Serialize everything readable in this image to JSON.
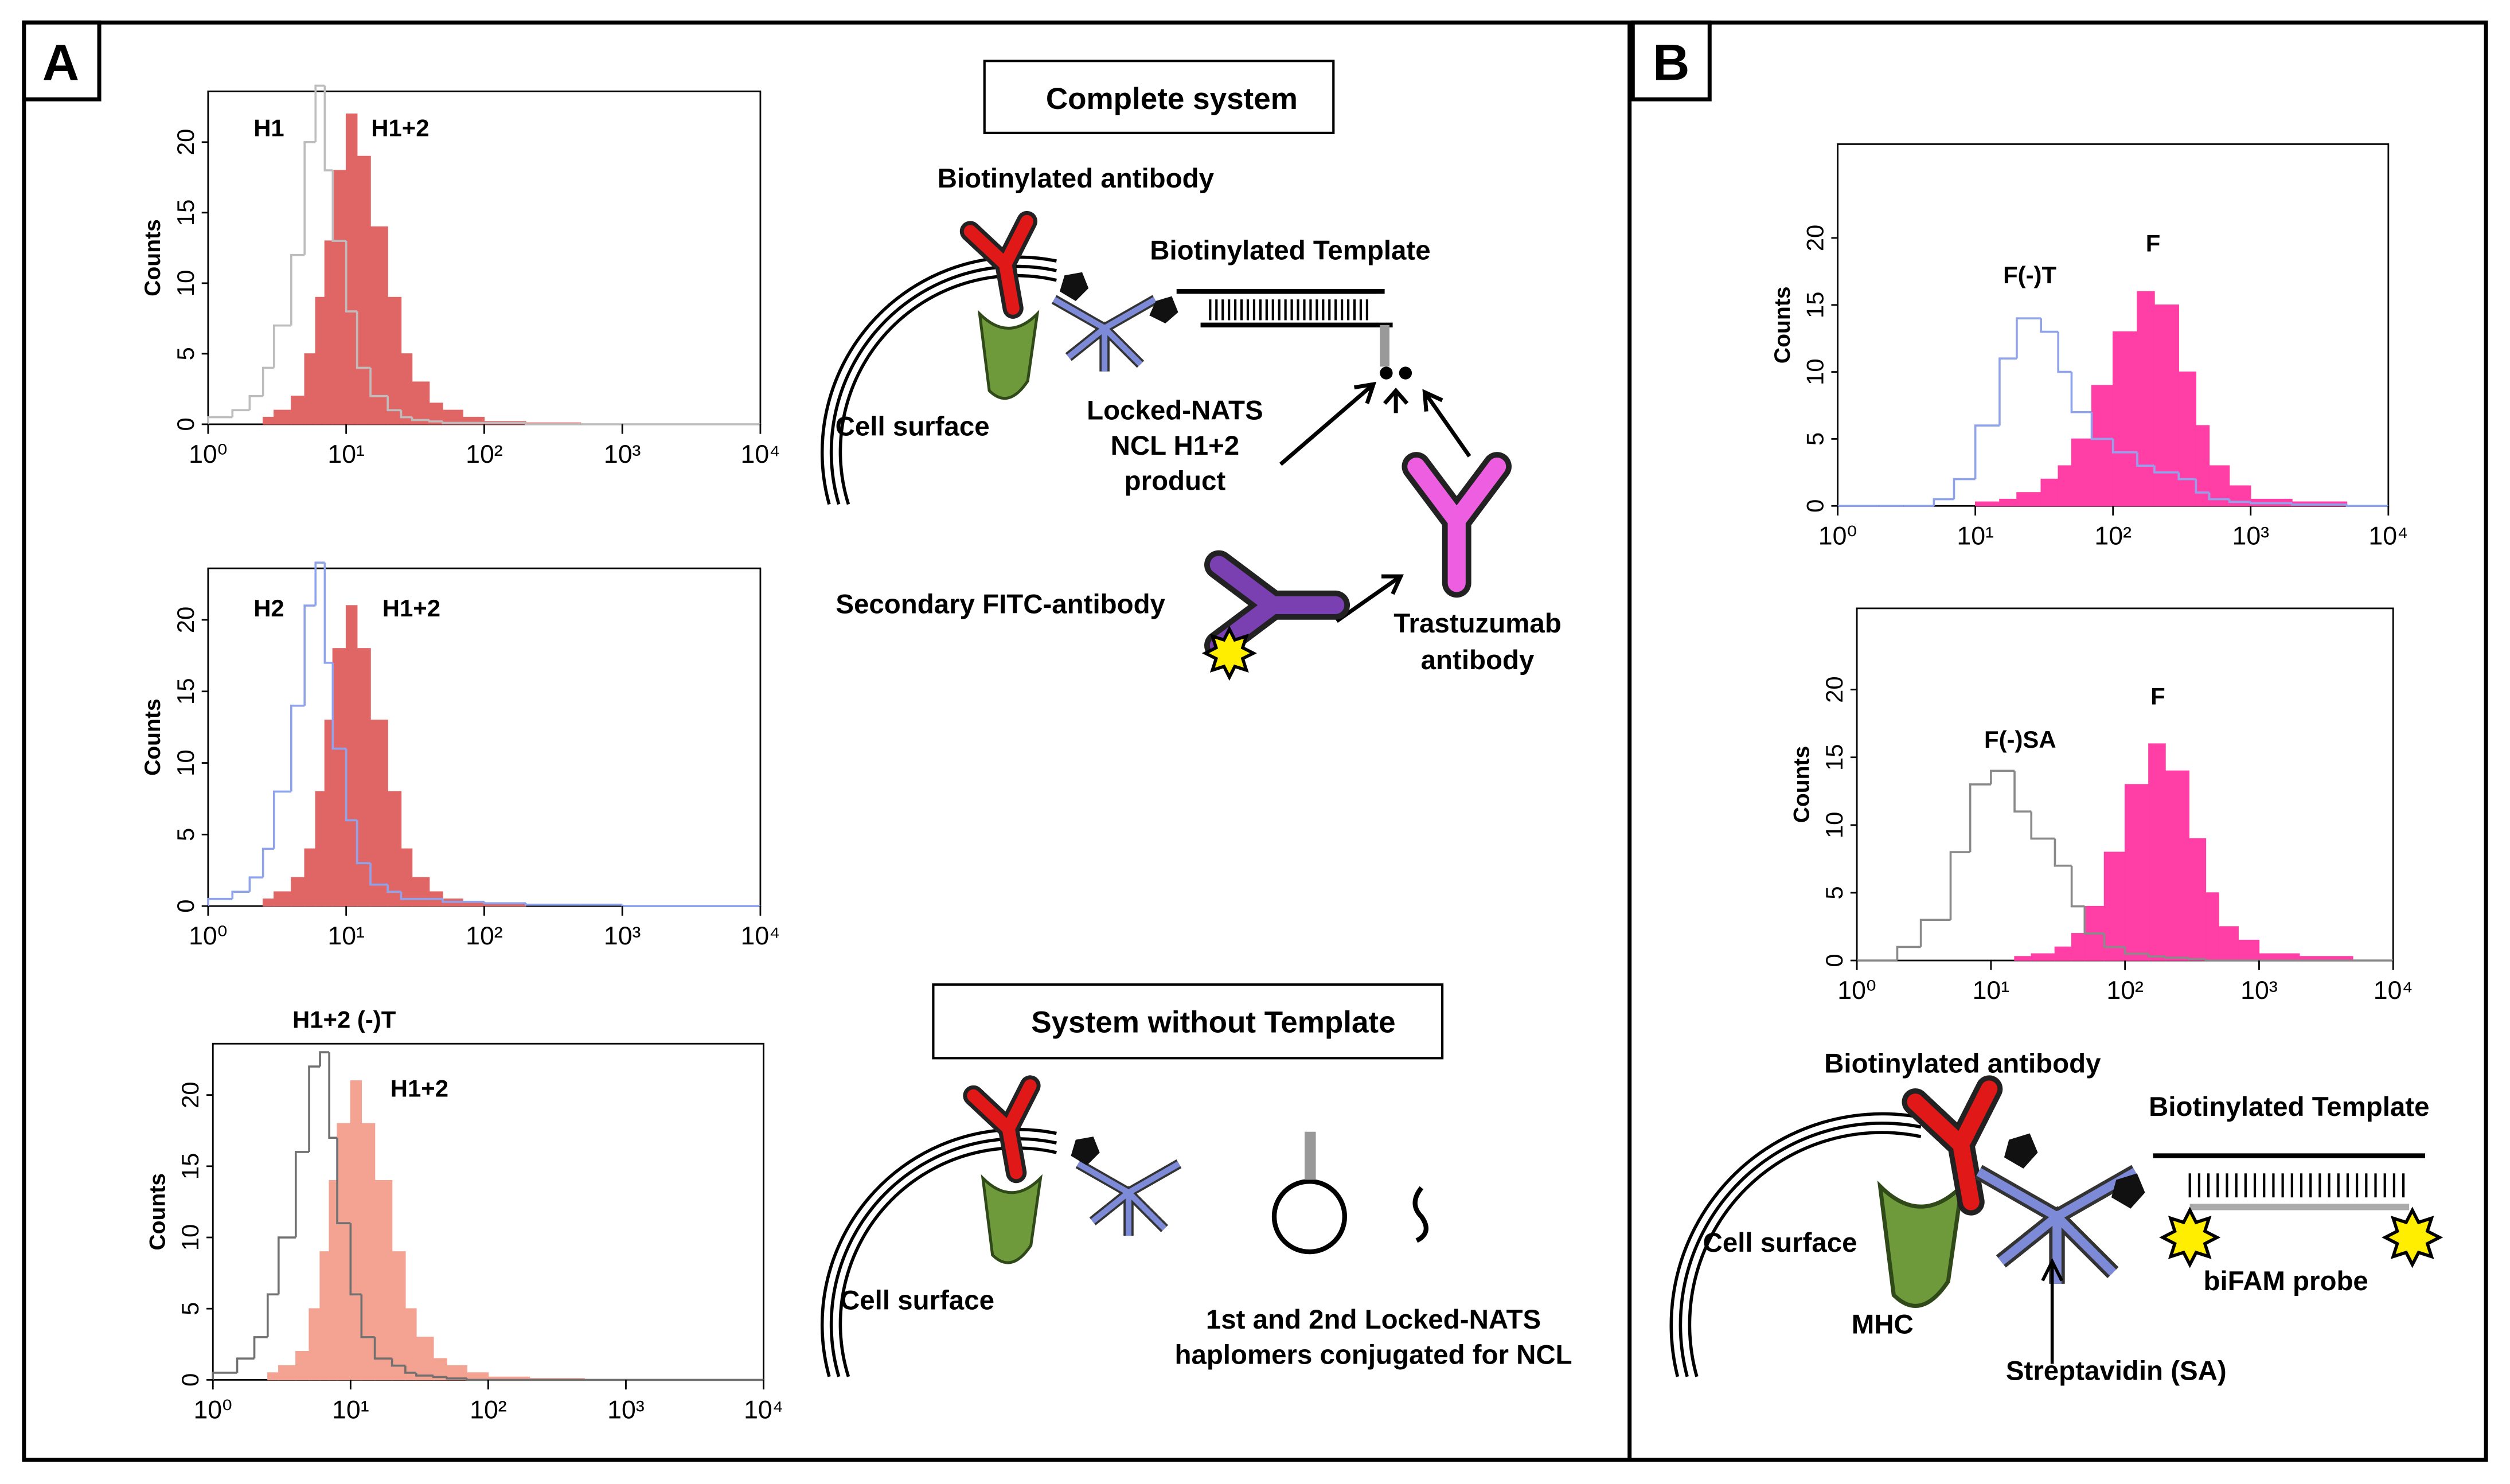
{
  "panels": {
    "a": "A",
    "b": "B"
  },
  "chart_data": [
    {
      "type": "histogram",
      "y_label": "Counts",
      "xlim": [
        1,
        10000
      ],
      "x_log": true,
      "ylim": [
        0,
        23.6
      ],
      "xticks": [
        {
          "value": 1,
          "label": "10⁰"
        },
        {
          "value": 10,
          "label": "10¹"
        },
        {
          "value": 100,
          "label": "10²"
        },
        {
          "value": 1000,
          "label": "10³"
        },
        {
          "value": 10000,
          "label": "10⁴"
        }
      ],
      "yticks": [
        0,
        5,
        10,
        15,
        20
      ],
      "bins": [
        1,
        1.5,
        2,
        2.5,
        3,
        4,
        5,
        6,
        7,
        8,
        10,
        12,
        15,
        20,
        25,
        30,
        40,
        50,
        70,
        100,
        200,
        500,
        1000,
        10000
      ],
      "series": [
        {
          "name": "H1",
          "color": "#bdbdbd",
          "filled": false,
          "values": [
            0.5,
            1,
            2,
            4,
            7,
            12,
            20,
            24,
            18,
            13,
            8,
            4,
            2,
            1,
            0.5,
            0.3,
            0.2,
            0.1,
            0.1,
            0.1,
            0,
            0,
            0
          ]
        },
        {
          "name": "H1+2",
          "color": "#e06666",
          "filled": true,
          "values": [
            0,
            0,
            0,
            0.5,
            1,
            2,
            5,
            9,
            13,
            18,
            22,
            19,
            14,
            9,
            5,
            3,
            1.5,
            1,
            0.5,
            0.2,
            0.1,
            0,
            0
          ]
        }
      ]
    },
    {
      "type": "histogram",
      "y_label": "Counts",
      "xlim": [
        1,
        10000
      ],
      "x_log": true,
      "ylim": [
        0,
        23.6
      ],
      "xticks": [
        {
          "value": 1,
          "label": "10⁰"
        },
        {
          "value": 10,
          "label": "10¹"
        },
        {
          "value": 100,
          "label": "10²"
        },
        {
          "value": 1000,
          "label": "10³"
        },
        {
          "value": 10000,
          "label": "10⁴"
        }
      ],
      "yticks": [
        0,
        5,
        10,
        15,
        20
      ],
      "bins": [
        1,
        1.5,
        2,
        2.5,
        3,
        4,
        5,
        6,
        7,
        8,
        10,
        12,
        15,
        20,
        25,
        30,
        40,
        50,
        70,
        100,
        200,
        500,
        1000,
        10000
      ],
      "series": [
        {
          "name": "H2",
          "color": "#8fa3ec",
          "filled": false,
          "values": [
            0.5,
            1,
            2,
            4,
            8,
            14,
            21,
            24,
            17,
            11,
            6,
            3,
            1.5,
            1,
            0.5,
            0.5,
            0.5,
            0.3,
            0.3,
            0.2,
            0.1,
            0.1,
            0
          ]
        },
        {
          "name": "H1+2",
          "color": "#e06666",
          "filled": true,
          "values": [
            0,
            0,
            0,
            0.5,
            1,
            2,
            4,
            8,
            13,
            18,
            21,
            18,
            13,
            8,
            4,
            2,
            1,
            0.5,
            0.3,
            0.1,
            0,
            0,
            0
          ]
        }
      ]
    },
    {
      "type": "histogram",
      "y_label": "Counts",
      "xlim": [
        1,
        10000
      ],
      "x_log": true,
      "ylim": [
        0,
        23.6
      ],
      "xticks": [
        {
          "value": 1,
          "label": "10⁰"
        },
        {
          "value": 10,
          "label": "10¹"
        },
        {
          "value": 100,
          "label": "10²"
        },
        {
          "value": 1000,
          "label": "10³"
        },
        {
          "value": 10000,
          "label": "10⁴"
        }
      ],
      "yticks": [
        0,
        5,
        10,
        15,
        20
      ],
      "bins": [
        1,
        1.5,
        2,
        2.5,
        3,
        4,
        5,
        6,
        7,
        8,
        10,
        12,
        15,
        20,
        25,
        30,
        40,
        50,
        70,
        100,
        200,
        500,
        1000,
        10000
      ],
      "series": [
        {
          "name": "H1+2 (-)T",
          "color": "#707070",
          "filled": false,
          "values": [
            0.5,
            1.5,
            3,
            6,
            10,
            16,
            22,
            23,
            17,
            11,
            6,
            3,
            1.5,
            1,
            0.5,
            0.3,
            0.2,
            0.1,
            0,
            0,
            0,
            0,
            0
          ]
        },
        {
          "name": "H1+2",
          "color": "#f4a392",
          "filled": true,
          "values": [
            0,
            0,
            0,
            0.5,
            1,
            2,
            5,
            9,
            14,
            18,
            21,
            18,
            14,
            9,
            5,
            3,
            1.5,
            1,
            0.5,
            0.2,
            0.1,
            0,
            0
          ]
        }
      ]
    },
    {
      "type": "histogram",
      "y_label": "Counts",
      "xlim": [
        1,
        10000
      ],
      "x_log": true,
      "ylim": [
        0,
        27
      ],
      "xticks": [
        {
          "value": 1,
          "label": "10⁰"
        },
        {
          "value": 10,
          "label": "10¹"
        },
        {
          "value": 100,
          "label": "10²"
        },
        {
          "value": 1000,
          "label": "10³"
        },
        {
          "value": 10000,
          "label": "10⁴"
        }
      ],
      "yticks": [
        0,
        5,
        10,
        15,
        20
      ],
      "bins": [
        1,
        2,
        3,
        5,
        7,
        10,
        15,
        20,
        30,
        40,
        50,
        70,
        100,
        150,
        200,
        300,
        400,
        500,
        700,
        1000,
        2000,
        5000,
        10000
      ],
      "series": [
        {
          "name": "F(-)T",
          "color": "#8fa3ec",
          "filled": false,
          "values": [
            0,
            0,
            0,
            0.5,
            2,
            6,
            11,
            14,
            13,
            10,
            7,
            5,
            4,
            3,
            2.5,
            2,
            1,
            0.5,
            0.3,
            0.2,
            0.1,
            0
          ]
        },
        {
          "name": "F",
          "color": "#ff3fa5",
          "filled": true,
          "values": [
            0,
            0,
            0,
            0,
            0,
            0.3,
            0.5,
            1,
            2,
            3,
            5,
            9,
            13,
            16,
            15,
            10,
            6,
            3,
            1.5,
            0.5,
            0.3,
            0
          ]
        }
      ]
    },
    {
      "type": "histogram",
      "y_label": "Counts",
      "xlim": [
        1,
        10000
      ],
      "x_log": true,
      "ylim": [
        0,
        26
      ],
      "xticks": [
        {
          "value": 1,
          "label": "10⁰"
        },
        {
          "value": 10,
          "label": "10¹"
        },
        {
          "value": 100,
          "label": "10²"
        },
        {
          "value": 1000,
          "label": "10³"
        },
        {
          "value": 10000,
          "label": "10⁴"
        }
      ],
      "yticks": [
        0,
        5,
        10,
        15,
        20
      ],
      "bins": [
        1,
        2,
        3,
        5,
        7,
        10,
        15,
        20,
        30,
        40,
        50,
        70,
        100,
        150,
        200,
        300,
        400,
        500,
        700,
        1000,
        2000,
        5000,
        10000
      ],
      "series": [
        {
          "name": "F(-)SA",
          "color": "#8a8a8a",
          "filled": false,
          "values": [
            0,
            1,
            3,
            8,
            13,
            14,
            11,
            9,
            7,
            4,
            2,
            1,
            0.5,
            0.3,
            0.2,
            0.1,
            0,
            0,
            0,
            0,
            0,
            0
          ]
        },
        {
          "name": "F",
          "color": "#ff3fa5",
          "filled": true,
          "values": [
            0,
            0,
            0,
            0,
            0,
            0,
            0.3,
            0.5,
            1,
            2,
            4,
            8,
            13,
            16,
            14,
            9,
            5,
            2.5,
            1.5,
            0.5,
            0.3,
            0
          ]
        }
      ]
    }
  ],
  "diagram": {
    "complete_system": "Complete system",
    "biotinylated_antibody": "Biotinylated antibody",
    "biotinylated_template": "Biotinylated Template",
    "cell_surface": "Cell surface",
    "product": [
      "Locked-NATS",
      "NCL H1+2",
      "product"
    ],
    "secondary": "Secondary FITC-antibody",
    "trastuzumab": [
      "Trastuzumab",
      "antibody"
    ],
    "system_without": "System without Template",
    "cell_surface_2": "Cell surface",
    "haplomers": [
      "1st and 2nd Locked-NATS",
      "haplomers conjugated for NCL"
    ],
    "b_biotinylated_antibody": "Biotinylated antibody",
    "b_biotinylated_template": "Biotinylated Template",
    "b_cell_surface": "Cell surface",
    "mhc": "MHC",
    "streptavidin": "Streptavidin (SA)",
    "bifam": "biFAM probe"
  }
}
